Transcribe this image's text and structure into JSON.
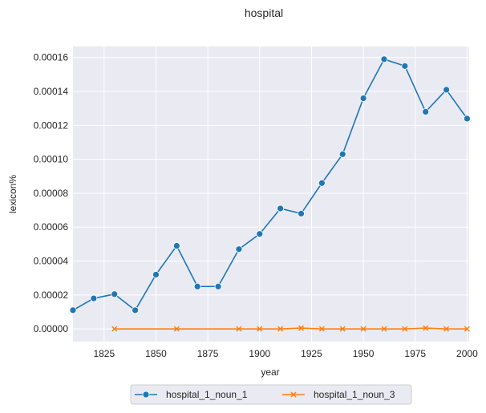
{
  "chart_data": {
    "type": "line",
    "title": "hospital",
    "xlabel": "year",
    "ylabel": "lexicon%",
    "xlim": [
      1810,
      2001
    ],
    "ylim": [
      -7.5e-06,
      0.0001665
    ],
    "x_ticks": [
      1825,
      1850,
      1875,
      1900,
      1925,
      1950,
      1975,
      2000
    ],
    "y_ticks": [
      0,
      2e-05,
      4e-05,
      6e-05,
      8e-05,
      0.0001,
      0.00012,
      0.00014,
      0.00016
    ],
    "y_tick_labels": [
      "0.00000",
      "0.00002",
      "0.00004",
      "0.00006",
      "0.00008",
      "0.00010",
      "0.00012",
      "0.00014",
      "0.00016"
    ],
    "grid": true,
    "legend_position": "bottom-center",
    "series": [
      {
        "name": "hospital_1_noun_1",
        "color": "#1f77b4",
        "marker": "circle",
        "points": [
          [
            1810,
            1.1e-05
          ],
          [
            1820,
            1.8e-05
          ],
          [
            1830,
            2.05e-05
          ],
          [
            1840,
            1.1e-05
          ],
          [
            1850,
            3.2e-05
          ],
          [
            1860,
            4.9e-05
          ],
          [
            1870,
            2.5e-05
          ],
          [
            1880,
            2.5e-05
          ],
          [
            1890,
            4.7e-05
          ],
          [
            1900,
            5.6e-05
          ],
          [
            1910,
            7.1e-05
          ],
          [
            1920,
            6.8e-05
          ],
          [
            1930,
            8.6e-05
          ],
          [
            1940,
            0.000103
          ],
          [
            1950,
            0.000136
          ],
          [
            1960,
            0.000159
          ],
          [
            1970,
            0.000155
          ],
          [
            1980,
            0.000128
          ],
          [
            1990,
            0.000141
          ],
          [
            2000,
            0.000124
          ]
        ]
      },
      {
        "name": "hospital_1_noun_3",
        "color": "#ff7f0e",
        "marker": "x",
        "points": [
          [
            1830,
            0.0
          ],
          [
            1860,
            0.0
          ],
          [
            1890,
            0.0
          ],
          [
            1900,
            0.0
          ],
          [
            1910,
            0.0
          ],
          [
            1920,
            5e-07
          ],
          [
            1930,
            0.0
          ],
          [
            1940,
            0.0
          ],
          [
            1950,
            0.0
          ],
          [
            1960,
            0.0
          ],
          [
            1970,
            0.0
          ],
          [
            1980,
            5e-07
          ],
          [
            1990,
            0.0
          ],
          [
            2000,
            0.0
          ]
        ]
      }
    ]
  }
}
